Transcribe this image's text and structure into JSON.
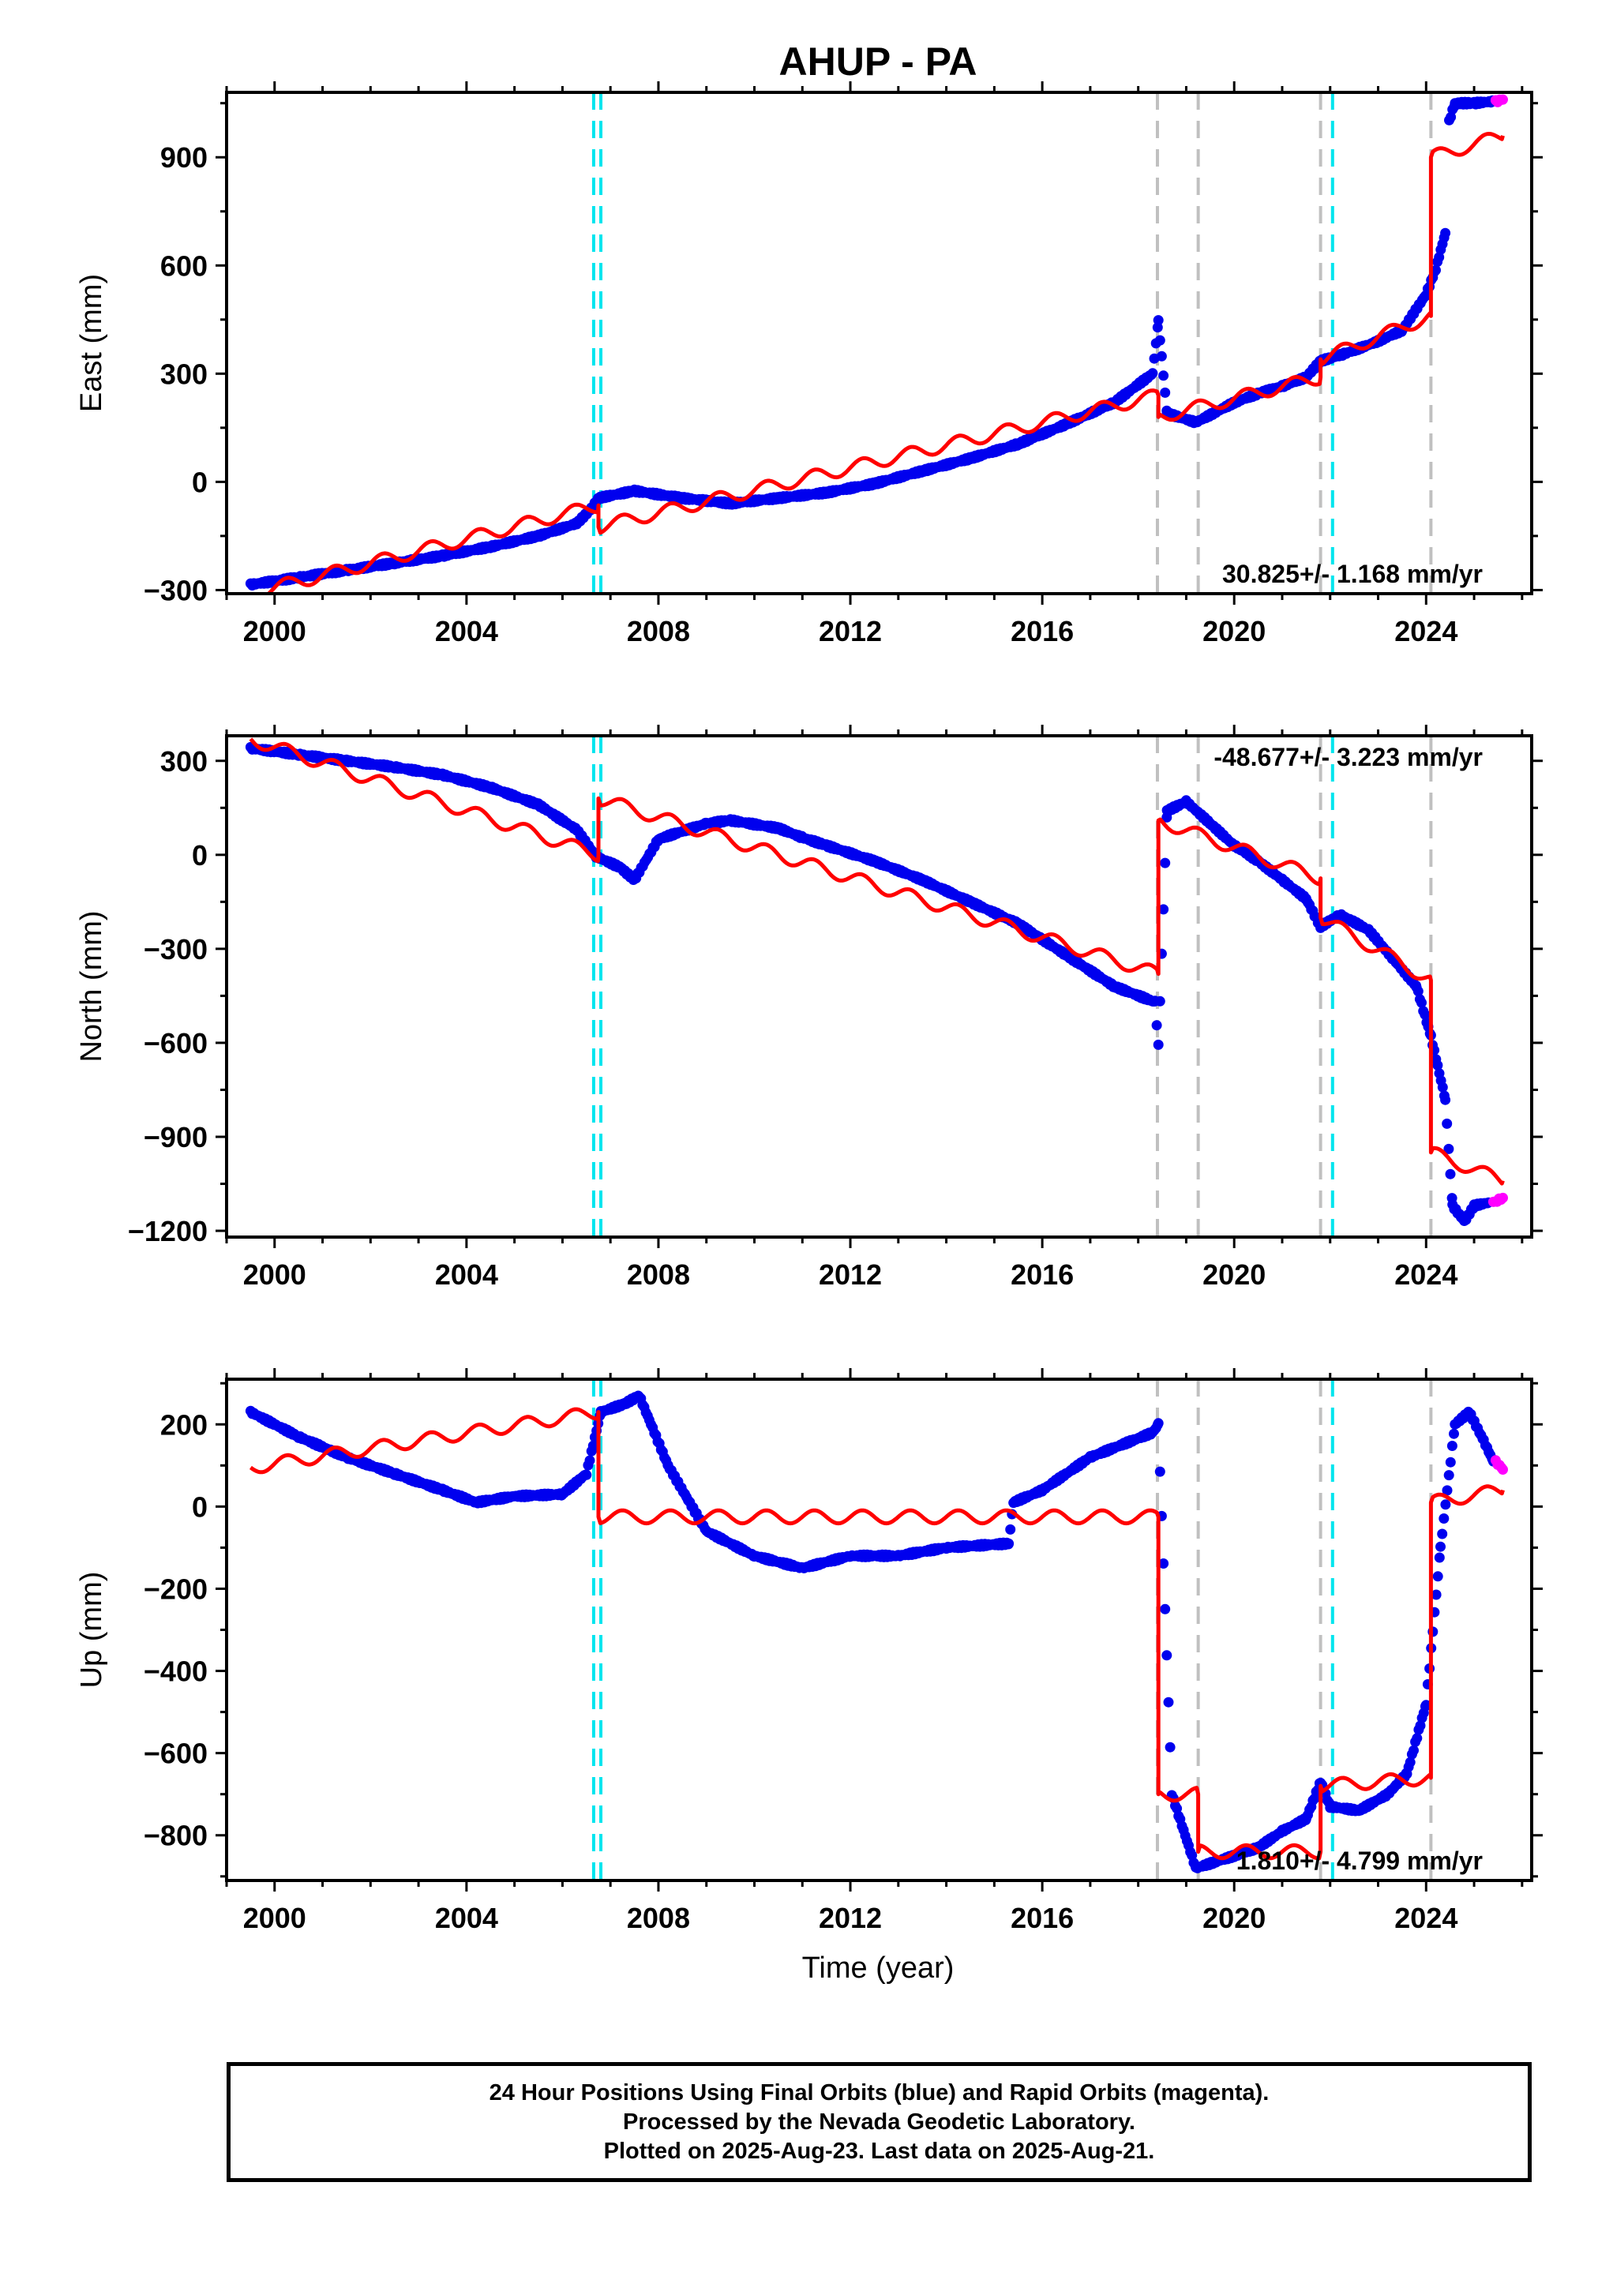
{
  "figure": {
    "title": "AHUP - PA",
    "xlabel": "Time (year)"
  },
  "colors": {
    "final_orbits": "#0000ee",
    "rapid_orbits": "#ff00ff",
    "model": "#ff0000",
    "equipment_change": "#00e5ee",
    "earthquake": "#c0c0c0"
  },
  "footer": {
    "line1": "24 Hour Positions Using Final Orbits (blue) and Rapid Orbits (magenta).",
    "line2": "Processed by the Nevada Geodetic Laboratory.",
    "line3": "Plotted on 2025-Aug-23. Last data on 2025-Aug-21."
  },
  "chart_data": [
    {
      "type": "scatter",
      "ylabel": "East (mm)",
      "xlim": [
        1999.0,
        2026.2
      ],
      "ylim": [
        -310,
        1080
      ],
      "x_ticks": [
        2000,
        2004,
        2008,
        2012,
        2016,
        2020,
        2024
      ],
      "y_ticks": [
        -300,
        0,
        300,
        600,
        900
      ],
      "rate_label": "30.825+/- 1.168 mm/yr",
      "cyan_lines": [
        2006.65,
        2006.8,
        2022.05
      ],
      "gray_lines": [
        2018.4,
        2019.25,
        2021.8,
        2024.1
      ],
      "series": [
        {
          "role": "final_orbits",
          "x": [
            1999.5,
            2000.5,
            2001.5,
            2002.5,
            2003.5,
            2004.5,
            2005.5,
            2006.3,
            2006.6,
            2006.75,
            2007.5,
            2008.5,
            2009.5,
            2010.5,
            2011.5,
            2012.5,
            2013.5,
            2014.5,
            2015.5,
            2016.5,
            2017.5,
            2018.3,
            2018.42,
            2018.6,
            2019.2,
            2020.0,
            2020.5,
            2021.0,
            2021.5,
            2021.8,
            2022.3,
            2023.0,
            2023.5,
            2024.0,
            2024.2,
            2024.4
          ],
          "y": [
            -285,
            -265,
            -245,
            -225,
            -205,
            -180,
            -150,
            -115,
            -75,
            -45,
            -25,
            -45,
            -60,
            -45,
            -30,
            -5,
            30,
            65,
            105,
            160,
            220,
            300,
            445,
            190,
            165,
            220,
            245,
            265,
            290,
            335,
            355,
            390,
            420,
            520,
            590,
            690
          ]
        },
        {
          "role": "final_orbits_segment",
          "x": [
            2024.48,
            2024.6,
            2025.0,
            2025.4
          ],
          "y": [
            1000,
            1050,
            1050,
            1055
          ]
        },
        {
          "role": "rapid_orbits",
          "x": [
            2025.45,
            2025.6
          ],
          "y": [
            1055,
            1060
          ]
        },
        {
          "role": "model",
          "x": [
            1999.5,
            2006.75,
            2006.75,
            2018.42,
            2018.42,
            2021.8,
            2021.8,
            2024.1,
            2024.1,
            2025.6
          ],
          "y": [
            -310,
            -65,
            -125,
            240,
            180,
            290,
            340,
            460,
            900,
            960
          ]
        }
      ]
    },
    {
      "type": "scatter",
      "ylabel": "North (mm)",
      "xlim": [
        1999.0,
        2026.2
      ],
      "ylim": [
        -1220,
        380
      ],
      "x_ticks": [
        2000,
        2004,
        2008,
        2012,
        2016,
        2020,
        2024
      ],
      "y_ticks": [
        -1200,
        -900,
        -600,
        -300,
        0,
        300
      ],
      "rate_label": "-48.677+/- 3.223 mm/yr",
      "cyan_lines": [
        2006.65,
        2006.8,
        2022.05
      ],
      "gray_lines": [
        2018.4,
        2019.25,
        2021.8,
        2024.1
      ],
      "series": [
        {
          "role": "final_orbits",
          "x": [
            1999.5,
            2000.5,
            2001.5,
            2002.5,
            2003.5,
            2004.5,
            2005.5,
            2006.3,
            2006.7,
            2007.2,
            2007.5,
            2008.0,
            2009.0,
            2009.5,
            2010.5,
            2011.0,
            2011.5,
            2012.5,
            2013.5,
            2014.5,
            2015.5,
            2016.5,
            2017.5,
            2018.35,
            2018.42,
            2018.6,
            2019.0,
            2019.5,
            2020.0,
            2020.5,
            2021.0,
            2021.5,
            2021.8,
            2022.2,
            2022.8,
            2023.3,
            2023.8,
            2024.1,
            2024.4,
            2024.55,
            2024.8,
            2025.0,
            2025.3
          ],
          "y": [
            340,
            320,
            300,
            280,
            255,
            215,
            160,
            80,
            -5,
            -40,
            -80,
            50,
            100,
            110,
            85,
            55,
            30,
            -20,
            -80,
            -150,
            -220,
            -320,
            -420,
            -470,
            -610,
            140,
            170,
            100,
            30,
            -20,
            -80,
            -140,
            -230,
            -190,
            -240,
            -330,
            -420,
            -580,
            -780,
            -1120,
            -1170,
            -1120,
            -1110
          ]
        },
        {
          "role": "rapid_orbits",
          "x": [
            2025.4,
            2025.6
          ],
          "y": [
            -1110,
            -1095
          ]
        },
        {
          "role": "model",
          "x": [
            1999.5,
            2006.75,
            2006.75,
            2018.42,
            2018.42,
            2021.8,
            2021.8,
            2024.1,
            2024.1,
            2025.6
          ],
          "y": [
            370,
            0,
            180,
            -380,
            110,
            -75,
            -200,
            -400,
            -950,
            -1040
          ]
        }
      ]
    },
    {
      "type": "scatter",
      "ylabel": "Up (mm)",
      "xlabel": "Time (year)",
      "xlim": [
        1999.0,
        2026.2
      ],
      "ylim": [
        -910,
        310
      ],
      "x_ticks": [
        2000,
        2004,
        2008,
        2012,
        2016,
        2020,
        2024
      ],
      "y_ticks": [
        -800,
        -600,
        -400,
        -200,
        0,
        200
      ],
      "rate_label": "1.810+/- 4.799 mm/yr",
      "cyan_lines": [
        2006.65,
        2006.8,
        2022.05
      ],
      "gray_lines": [
        2018.4,
        2019.25,
        2021.8,
        2024.1
      ],
      "series": [
        {
          "role": "final_orbits",
          "x": [
            1999.5,
            2000.5,
            2001.5,
            2002.5,
            2003.5,
            2004.2,
            2005.0,
            2006.0,
            2006.5,
            2006.8,
            2007.3,
            2007.6,
            2008.2,
            2009.0,
            2010.0,
            2011.0,
            2012.0,
            2013.0,
            2014.0,
            2015.3,
            2015.4,
            2016.0,
            2017.0,
            2018.3,
            2018.42,
            2018.7,
            2019.2,
            2020.0,
            2020.5,
            2021.0,
            2021.5,
            2021.8,
            2022.0,
            2022.6,
            2023.2,
            2023.6,
            2024.0,
            2024.3,
            2024.6,
            2024.9,
            2025.2,
            2025.4
          ],
          "y": [
            230,
            170,
            120,
            80,
            40,
            10,
            25,
            30,
            80,
            230,
            250,
            270,
            100,
            -60,
            -120,
            -150,
            -120,
            -120,
            -100,
            -90,
            10,
            40,
            120,
            180,
            200,
            -700,
            -880,
            -850,
            -830,
            -790,
            -760,
            -670,
            -730,
            -740,
            -700,
            -650,
            -480,
            -100,
            200,
            230,
            160,
            110
          ]
        },
        {
          "role": "rapid_orbits",
          "x": [
            2025.45,
            2025.6
          ],
          "y": [
            110,
            90
          ]
        },
        {
          "role": "model",
          "x": [
            1999.5,
            2006.75,
            2006.75,
            2018.42,
            2018.42,
            2019.25,
            2019.25,
            2021.8,
            2021.8,
            2024.1,
            2024.1,
            2025.6
          ],
          "y": [
            95,
            230,
            -25,
            -25,
            -700,
            -700,
            -840,
            -840,
            -680,
            -660,
            10,
            40
          ]
        }
      ]
    }
  ]
}
